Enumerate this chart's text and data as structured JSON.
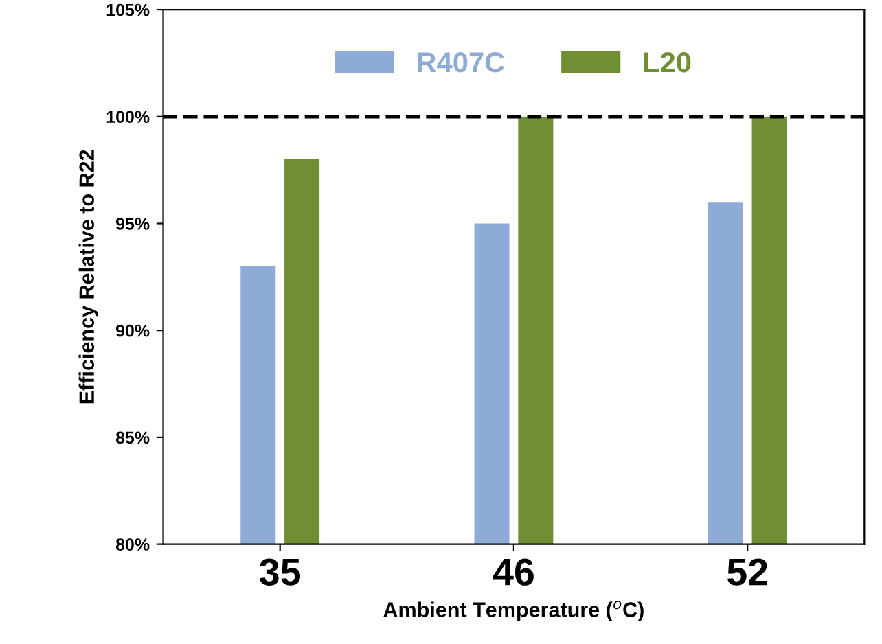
{
  "chart_data": {
    "type": "bar",
    "categories": [
      "35",
      "46",
      "52"
    ],
    "series": [
      {
        "name": "R407C",
        "color": "#8eaad6",
        "values": [
          93,
          95,
          96
        ]
      },
      {
        "name": "L20",
        "color": "#6f8f32",
        "values": [
          98,
          100,
          100
        ]
      }
    ],
    "xlabel": "Ambient Temperature ($^{o}$C)",
    "ylabel": "Efficiency Relative to R22",
    "ylim": [
      80,
      105
    ],
    "yticks": [
      {
        "value": 80,
        "label": "80%"
      },
      {
        "value": 85,
        "label": "85%"
      },
      {
        "value": 90,
        "label": "90%"
      },
      {
        "value": 95,
        "label": "95%"
      },
      {
        "value": 100,
        "label": "100%"
      },
      {
        "value": 105,
        "label": "105%"
      }
    ],
    "ref_lines": [
      {
        "axis": "y",
        "value": 100,
        "label": null,
        "color": "#000000",
        "line_style": "dashed"
      }
    ],
    "legend": "top",
    "grid": false
  }
}
